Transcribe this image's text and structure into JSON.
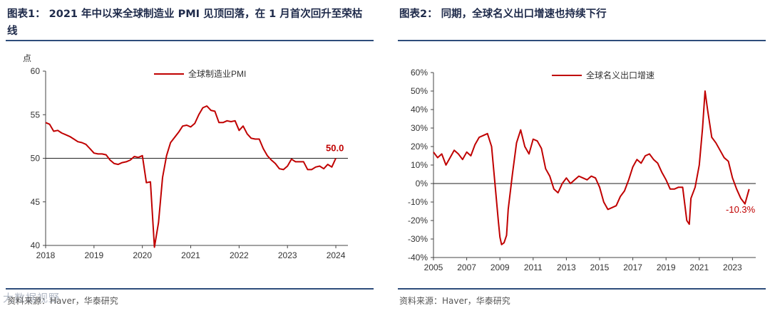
{
  "left_panel": {
    "title": "图表1： 2021 年中以来全球制造业 PMI 见顶回落，在 1 月首次回升至荣枯线",
    "source": "资料来源：Haver，华泰研究",
    "watermark": "大数据视野"
  },
  "right_panel": {
    "title": "图表2： 同期，全球名义出口增速也持续下行",
    "source": "资料来源：Haver，华泰研究"
  },
  "chart_data": [
    {
      "type": "line",
      "title": "图表1： 2021 年中以来全球制造业 PMI 见顶回落，在 1 月首次回升至荣枯线",
      "ylabel": "点",
      "ylim": [
        40,
        60
      ],
      "yticks": [
        "40",
        "45",
        "50",
        "55",
        "60"
      ],
      "xlim": [
        2018,
        2024.25
      ],
      "xticks": [
        "2018",
        "2019",
        "2020",
        "2021",
        "2022",
        "2023",
        "2024"
      ],
      "reference_line": 50,
      "legend": "全球制造业PMI",
      "legend_position": "top-center",
      "annotation": "50.0",
      "color": "#c00000",
      "series": [
        {
          "name": "全球制造业PMI",
          "x": [
            2018.0,
            2018.083,
            2018.167,
            2018.25,
            2018.333,
            2018.417,
            2018.5,
            2018.583,
            2018.667,
            2018.75,
            2018.833,
            2018.917,
            2019.0,
            2019.083,
            2019.167,
            2019.25,
            2019.333,
            2019.417,
            2019.5,
            2019.583,
            2019.667,
            2019.75,
            2019.833,
            2019.917,
            2020.0,
            2020.083,
            2020.167,
            2020.25,
            2020.333,
            2020.417,
            2020.5,
            2020.583,
            2020.667,
            2020.75,
            2020.833,
            2020.917,
            2021.0,
            2021.083,
            2021.167,
            2021.25,
            2021.333,
            2021.417,
            2021.5,
            2021.583,
            2021.667,
            2021.75,
            2021.833,
            2021.917,
            2022.0,
            2022.083,
            2022.167,
            2022.25,
            2022.333,
            2022.417,
            2022.5,
            2022.583,
            2022.667,
            2022.75,
            2022.833,
            2022.917,
            2023.0,
            2023.083,
            2023.167,
            2023.25,
            2023.333,
            2023.417,
            2023.5,
            2023.583,
            2023.667,
            2023.75,
            2023.833,
            2023.917,
            2024.0
          ],
          "values": [
            54.1,
            53.9,
            53.1,
            53.2,
            52.9,
            52.7,
            52.5,
            52.2,
            51.9,
            51.8,
            51.6,
            51.1,
            50.6,
            50.5,
            50.5,
            50.4,
            49.8,
            49.4,
            49.3,
            49.5,
            49.6,
            49.8,
            50.2,
            50.1,
            50.3,
            47.2,
            47.3,
            39.8,
            42.6,
            47.8,
            50.3,
            51.8,
            52.4,
            53.0,
            53.7,
            53.8,
            53.6,
            54.0,
            55.0,
            55.8,
            56.0,
            55.5,
            55.4,
            54.1,
            54.1,
            54.3,
            54.2,
            54.3,
            53.2,
            53.7,
            52.8,
            52.3,
            52.2,
            52.2,
            51.1,
            50.3,
            49.8,
            49.4,
            48.8,
            48.7,
            49.1,
            49.9,
            49.6,
            49.6,
            49.6,
            48.7,
            48.7,
            49.0,
            49.1,
            48.8,
            49.3,
            49.0,
            50.0
          ]
        }
      ]
    },
    {
      "type": "line",
      "title": "图表2： 同期，全球名义出口增速也持续下行",
      "ylabel": "",
      "ylim": [
        -40,
        60
      ],
      "yticks": [
        "-40%",
        "-30%",
        "-20%",
        "-10%",
        "0%",
        "10%",
        "20%",
        "30%",
        "40%",
        "50%",
        "60%"
      ],
      "xlim": [
        2005,
        2024.4
      ],
      "xticks": [
        "2005",
        "2007",
        "2009",
        "2011",
        "2013",
        "2015",
        "2017",
        "2019",
        "2021",
        "2023"
      ],
      "reference_line": 0,
      "legend": "全球名义出口增速",
      "legend_position": "top-center",
      "annotation": "-10.3%",
      "color": "#c00000",
      "series": [
        {
          "name": "全球名义出口增速",
          "x": [
            2005.0,
            2005.25,
            2005.5,
            2005.75,
            2006.0,
            2006.25,
            2006.5,
            2006.75,
            2007.0,
            2007.25,
            2007.5,
            2007.75,
            2008.0,
            2008.25,
            2008.5,
            2008.75,
            2008.9,
            2009.0,
            2009.1,
            2009.25,
            2009.4,
            2009.5,
            2009.75,
            2010.0,
            2010.25,
            2010.5,
            2010.75,
            2011.0,
            2011.25,
            2011.5,
            2011.75,
            2012.0,
            2012.25,
            2012.5,
            2012.75,
            2013.0,
            2013.25,
            2013.5,
            2013.75,
            2014.0,
            2014.25,
            2014.5,
            2014.75,
            2015.0,
            2015.25,
            2015.5,
            2015.75,
            2016.0,
            2016.25,
            2016.5,
            2016.75,
            2017.0,
            2017.25,
            2017.5,
            2017.75,
            2018.0,
            2018.25,
            2018.5,
            2018.75,
            2019.0,
            2019.25,
            2019.5,
            2019.75,
            2020.0,
            2020.25,
            2020.4,
            2020.5,
            2020.75,
            2021.0,
            2021.2,
            2021.35,
            2021.5,
            2021.75,
            2022.0,
            2022.25,
            2022.5,
            2022.75,
            2023.0,
            2023.25,
            2023.5,
            2023.75,
            2024.0
          ],
          "values": [
            17,
            14,
            16,
            10,
            14,
            18,
            16,
            13,
            17,
            15,
            21,
            25,
            26,
            27,
            20,
            -5,
            -20,
            -29,
            -33,
            -32,
            -28,
            -14,
            5,
            22,
            29,
            20,
            16,
            24,
            23,
            19,
            8,
            4,
            -3,
            -5,
            0,
            3,
            0,
            2,
            4,
            3,
            2,
            4,
            3,
            -2,
            -10,
            -14,
            -13,
            -12,
            -7,
            -4,
            2,
            9,
            13,
            11,
            15,
            16,
            13,
            11,
            6,
            2,
            -3,
            -3,
            -2,
            -2,
            -20,
            -22,
            -8,
            -2,
            10,
            30,
            50,
            40,
            25,
            22,
            18,
            14,
            12,
            3,
            -3,
            -8,
            -11,
            -3
          ]
        }
      ]
    }
  ]
}
